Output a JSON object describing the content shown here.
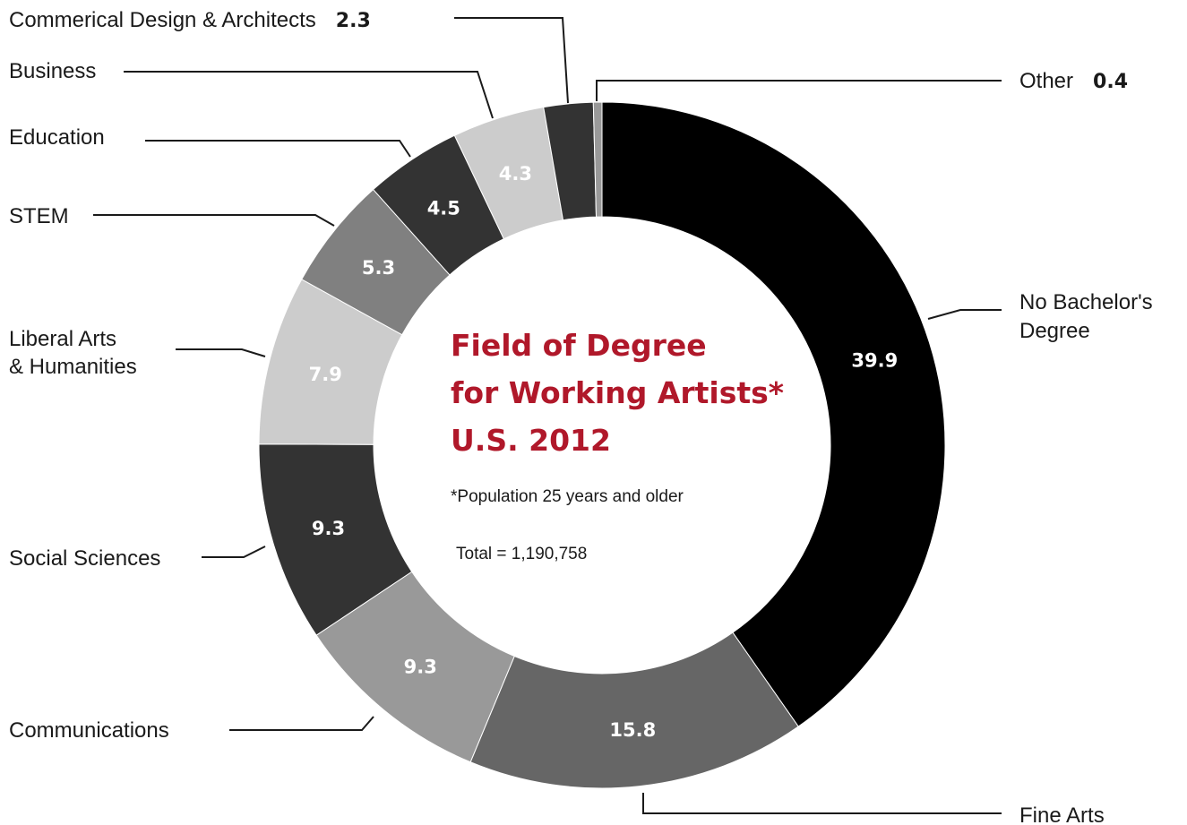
{
  "chart_data": {
    "type": "pie",
    "style": "donut",
    "title_lines": [
      "Field of Degree",
      "for Working Artists*",
      "U.S. 2012"
    ],
    "footnote": "*Population 25 years and older",
    "total_text": "Total = 1,190,758",
    "slices": [
      {
        "name": "No Bachelor's Degree",
        "label_lines": [
          "No Bachelor's",
          "Degree"
        ],
        "value": 39.9,
        "color": "#000000",
        "value_display": "inside"
      },
      {
        "name": "Fine Arts",
        "label_lines": [
          "Fine Arts"
        ],
        "value": 15.8,
        "color": "#666666",
        "value_display": "inside"
      },
      {
        "name": "Communications",
        "label_lines": [
          "Communications"
        ],
        "value": 9.3,
        "color": "#999999",
        "value_display": "inside"
      },
      {
        "name": "Social Sciences",
        "label_lines": [
          "Social Sciences"
        ],
        "value": 9.3,
        "color": "#333333",
        "value_display": "inside"
      },
      {
        "name": "Liberal Arts & Humanities",
        "label_lines": [
          "Liberal Arts",
          "& Humanities"
        ],
        "value": 7.9,
        "color": "#cccccc",
        "value_display": "inside"
      },
      {
        "name": "STEM",
        "label_lines": [
          "STEM"
        ],
        "value": 5.3,
        "color": "#808080",
        "value_display": "inside"
      },
      {
        "name": "Education",
        "label_lines": [
          "Education"
        ],
        "value": 4.5,
        "color": "#333333",
        "value_display": "inside"
      },
      {
        "name": "Business",
        "label_lines": [
          "Business"
        ],
        "value": 4.3,
        "color": "#cccccc",
        "value_display": "inside"
      },
      {
        "name": "Commerical Design & Architects",
        "label_lines": [
          "Commerical Design & Architects"
        ],
        "value": 2.3,
        "color": "#333333",
        "value_display": "outside"
      },
      {
        "name": "Other",
        "label_lines": [
          "Other"
        ],
        "value": 0.4,
        "color": "#999999",
        "value_display": "outside"
      }
    ]
  }
}
